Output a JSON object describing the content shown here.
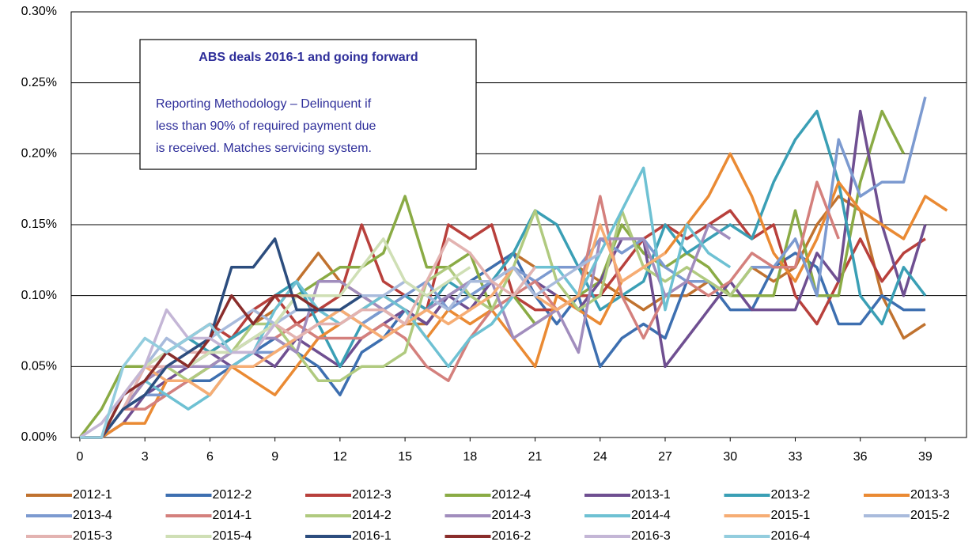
{
  "chart_data": {
    "type": "line",
    "annotation": {
      "title": "ABS deals 2016-1 and going forward",
      "lines": [
        "Reporting Methodology – Delinquent if",
        "less than 90% of required payment due",
        "is received. Matches servicing system."
      ]
    },
    "x": [
      0,
      1,
      2,
      3,
      4,
      5,
      6,
      7,
      8,
      9,
      10,
      11,
      12,
      13,
      14,
      15,
      16,
      17,
      18,
      19,
      20,
      21,
      22,
      23,
      24,
      25,
      26,
      27,
      28,
      29,
      30,
      31,
      32,
      33,
      34,
      35,
      36,
      37,
      38,
      39,
      40
    ],
    "xlim": [
      -0.4,
      40.9
    ],
    "xticks": [
      0,
      3,
      6,
      9,
      12,
      15,
      18,
      21,
      24,
      27,
      30,
      33,
      36,
      39
    ],
    "ylim": [
      0,
      0.3
    ],
    "yticks": [
      {
        "value": 0,
        "label": "0.00%"
      },
      {
        "value": 0.05,
        "label": "0.05%"
      },
      {
        "value": 0.1,
        "label": "0.10%"
      },
      {
        "value": 0.15,
        "label": "0.15%"
      },
      {
        "value": 0.2,
        "label": "0.20%"
      },
      {
        "value": 0.25,
        "label": "0.25%"
      },
      {
        "value": 0.3,
        "label": "0.30%"
      }
    ],
    "grid": true,
    "series": [
      {
        "name": "2012-1",
        "color": "#c0722f",
        "values": [
          0,
          0,
          0.02,
          0.04,
          0.05,
          0.05,
          0.06,
          0.07,
          0.08,
          0.09,
          0.11,
          0.13,
          0.11,
          0.1,
          0.09,
          0.08,
          0.08,
          0.1,
          0.11,
          0.12,
          0.13,
          0.12,
          0.12,
          0.12,
          0.11,
          0.1,
          0.09,
          0.1,
          0.1,
          0.11,
          0.1,
          0.12,
          0.11,
          0.12,
          0.15,
          0.17,
          0.16,
          0.1,
          0.07,
          0.08,
          null
        ]
      },
      {
        "name": "2012-2",
        "color": "#3d6fb0",
        "values": [
          0,
          0,
          0.02,
          0.03,
          0.04,
          0.04,
          0.04,
          0.05,
          0.06,
          0.07,
          0.06,
          0.05,
          0.03,
          0.06,
          0.07,
          0.09,
          0.08,
          0.1,
          0.11,
          0.12,
          0.13,
          0.1,
          0.08,
          0.1,
          0.05,
          0.07,
          0.08,
          0.07,
          0.11,
          0.11,
          0.09,
          0.09,
          0.12,
          0.13,
          0.12,
          0.08,
          0.08,
          0.1,
          0.09,
          0.09,
          null
        ]
      },
      {
        "name": "2012-3",
        "color": "#b8403c",
        "values": [
          0,
          0,
          0.02,
          0.04,
          0.06,
          0.07,
          0.08,
          0.07,
          0.09,
          0.1,
          0.08,
          0.09,
          0.1,
          0.15,
          0.11,
          0.1,
          0.09,
          0.15,
          0.14,
          0.15,
          0.1,
          0.09,
          0.09,
          0.1,
          0.1,
          0.12,
          0.14,
          0.15,
          0.14,
          0.15,
          0.16,
          0.14,
          0.15,
          0.1,
          0.08,
          0.11,
          0.14,
          0.11,
          0.13,
          0.14,
          null
        ]
      },
      {
        "name": "2012-4",
        "color": "#8aab45",
        "values": [
          0,
          0.02,
          0.05,
          0.05,
          0.06,
          0.05,
          0.05,
          0.06,
          0.07,
          0.08,
          0.1,
          0.11,
          0.12,
          0.12,
          0.13,
          0.17,
          0.12,
          0.12,
          0.13,
          0.09,
          0.1,
          0.08,
          0.09,
          0.1,
          0.11,
          0.15,
          0.13,
          0.12,
          0.13,
          0.12,
          0.1,
          0.1,
          0.1,
          0.16,
          0.1,
          0.1,
          0.18,
          0.23,
          0.2,
          null,
          null
        ]
      },
      {
        "name": "2013-1",
        "color": "#6f4f91",
        "values": [
          0,
          0,
          0.01,
          0.03,
          0.04,
          0.05,
          0.06,
          0.05,
          0.06,
          0.05,
          0.07,
          0.06,
          0.05,
          0.07,
          0.08,
          0.09,
          0.08,
          0.1,
          0.09,
          0.11,
          0.12,
          0.11,
          0.1,
          0.09,
          0.11,
          0.14,
          0.14,
          0.05,
          0.07,
          0.09,
          0.11,
          0.09,
          0.09,
          0.09,
          0.13,
          0.11,
          0.23,
          0.15,
          0.1,
          0.15,
          null
        ]
      },
      {
        "name": "2013-2",
        "color": "#3a9fb5",
        "values": [
          0,
          0,
          0.02,
          0.04,
          0.06,
          0.07,
          0.06,
          0.07,
          0.08,
          0.1,
          0.11,
          0.08,
          0.05,
          0.08,
          0.09,
          0.1,
          0.09,
          0.11,
          0.1,
          0.11,
          0.13,
          0.16,
          0.15,
          0.12,
          0.09,
          0.1,
          0.11,
          0.15,
          0.13,
          0.14,
          0.15,
          0.14,
          0.18,
          0.21,
          0.23,
          0.18,
          0.1,
          0.08,
          0.12,
          0.1,
          null
        ]
      },
      {
        "name": "2013-3",
        "color": "#ea8a33",
        "values": [
          0,
          0,
          0.01,
          0.01,
          0.04,
          0.04,
          0.03,
          0.05,
          0.04,
          0.03,
          0.05,
          0.07,
          0.08,
          0.09,
          0.1,
          0.09,
          0.07,
          0.09,
          0.08,
          0.09,
          0.07,
          0.05,
          0.1,
          0.09,
          0.08,
          0.11,
          0.12,
          0.13,
          0.15,
          0.17,
          0.2,
          0.17,
          0.13,
          0.11,
          0.14,
          0.18,
          0.16,
          0.15,
          0.14,
          0.17,
          0.16
        ]
      },
      {
        "name": "2013-4",
        "color": "#7c9ad0",
        "values": [
          0,
          0,
          0.02,
          0.03,
          0.03,
          0.04,
          0.05,
          0.05,
          0.06,
          0.06,
          0.07,
          0.08,
          0.09,
          0.08,
          0.09,
          0.1,
          0.11,
          0.09,
          0.1,
          0.11,
          0.12,
          0.11,
          0.12,
          0.12,
          0.14,
          0.13,
          0.14,
          0.12,
          0.11,
          0.11,
          0.1,
          0.12,
          0.12,
          0.14,
          0.1,
          0.21,
          0.17,
          0.18,
          0.18,
          0.24,
          null
        ]
      },
      {
        "name": "2014-1",
        "color": "#d4807d",
        "values": [
          0,
          0,
          0.02,
          0.02,
          0.03,
          0.04,
          0.05,
          0.06,
          0.07,
          0.07,
          0.08,
          0.07,
          0.07,
          0.07,
          0.08,
          0.07,
          0.05,
          0.04,
          0.07,
          0.09,
          0.1,
          0.11,
          0.09,
          0.1,
          0.17,
          0.1,
          0.07,
          0.1,
          0.11,
          0.1,
          0.11,
          0.13,
          0.12,
          0.12,
          0.18,
          0.14,
          null,
          null,
          null,
          null,
          null
        ]
      },
      {
        "name": "2014-2",
        "color": "#b0ca7f",
        "values": [
          0,
          0,
          0.02,
          0.04,
          0.05,
          0.04,
          0.05,
          0.06,
          0.08,
          0.08,
          0.06,
          0.04,
          0.04,
          0.05,
          0.05,
          0.06,
          0.11,
          0.12,
          0.1,
          0.09,
          0.12,
          0.16,
          0.11,
          0.09,
          0.1,
          0.16,
          0.12,
          0.11,
          0.12,
          0.11,
          0.1,
          0.12,
          null,
          null,
          null,
          null,
          null,
          null,
          null,
          null,
          null
        ]
      },
      {
        "name": "2014-3",
        "color": "#a18dbd",
        "values": [
          0,
          0,
          0.02,
          0.04,
          0.05,
          0.05,
          0.05,
          0.06,
          0.07,
          0.07,
          0.06,
          0.11,
          0.11,
          0.1,
          0.09,
          0.08,
          0.09,
          0.1,
          0.11,
          0.11,
          0.07,
          0.08,
          0.09,
          0.06,
          0.14,
          0.14,
          0.14,
          0.1,
          0.11,
          0.15,
          0.14,
          null,
          null,
          null,
          null,
          null,
          null,
          null,
          null,
          null,
          null
        ]
      },
      {
        "name": "2014-4",
        "color": "#6ec1d3",
        "values": [
          0,
          0,
          0.03,
          0.04,
          0.03,
          0.02,
          0.03,
          0.05,
          0.06,
          0.09,
          0.11,
          0.09,
          0.08,
          0.09,
          0.1,
          0.09,
          0.07,
          0.05,
          0.07,
          0.08,
          0.1,
          0.12,
          0.12,
          0.1,
          0.13,
          0.16,
          0.19,
          0.09,
          0.15,
          0.13,
          0.12,
          null,
          null,
          null,
          null,
          null,
          null,
          null,
          null,
          null,
          null
        ]
      },
      {
        "name": "2015-1",
        "color": "#f6ad74",
        "values": [
          0,
          0,
          0.03,
          0.05,
          0.04,
          0.04,
          0.03,
          0.05,
          0.05,
          0.06,
          0.07,
          0.08,
          0.09,
          0.08,
          0.07,
          0.08,
          0.09,
          0.08,
          0.09,
          0.1,
          0.12,
          0.1,
          0.09,
          0.1,
          0.15,
          0.11,
          0.12,
          0.13,
          null,
          null,
          null,
          null,
          null,
          null,
          null,
          null,
          null,
          null,
          null,
          null,
          null
        ]
      },
      {
        "name": "2015-2",
        "color": "#a9bbdc",
        "values": [
          0,
          0,
          0.02,
          0.05,
          0.07,
          0.06,
          0.07,
          0.08,
          0.09,
          0.08,
          0.09,
          0.09,
          0.09,
          0.1,
          0.1,
          0.11,
          0.1,
          0.09,
          0.11,
          0.11,
          0.12,
          0.1,
          0.11,
          0.12,
          0.13,
          null,
          null,
          null,
          null,
          null,
          null,
          null,
          null,
          null,
          null,
          null,
          null,
          null,
          null,
          null,
          null
        ]
      },
      {
        "name": "2015-3",
        "color": "#e3b3b1",
        "values": [
          0,
          0,
          0.02,
          0.05,
          0.05,
          0.06,
          0.06,
          0.06,
          0.06,
          0.08,
          0.07,
          0.08,
          0.08,
          0.09,
          0.09,
          0.08,
          0.11,
          0.14,
          0.13,
          0.11,
          0.1,
          0.12,
          null,
          null,
          null,
          null,
          null,
          null,
          null,
          null,
          null,
          null,
          null,
          null,
          null,
          null,
          null,
          null,
          null,
          null,
          null
        ]
      },
      {
        "name": "2015-4",
        "color": "#cfdfb5",
        "values": [
          0,
          0,
          0.03,
          0.05,
          0.06,
          0.05,
          0.06,
          0.06,
          0.07,
          0.08,
          0.1,
          0.1,
          0.1,
          0.12,
          0.14,
          0.11,
          0.1,
          0.11,
          0.12,
          null,
          null,
          null,
          null,
          null,
          null,
          null,
          null,
          null,
          null,
          null,
          null,
          null,
          null,
          null,
          null,
          null,
          null,
          null,
          null,
          null,
          null
        ]
      },
      {
        "name": "2016-1",
        "color": "#2c4d7e",
        "values": [
          0,
          0,
          0.02,
          0.03,
          0.05,
          0.06,
          0.07,
          0.12,
          0.12,
          0.14,
          0.09,
          0.09,
          0.09,
          0.1,
          null,
          null,
          null,
          null,
          null,
          null,
          null,
          null,
          null,
          null,
          null,
          null,
          null,
          null,
          null,
          null,
          null,
          null,
          null,
          null,
          null,
          null,
          null,
          null,
          null,
          null,
          null
        ]
      },
      {
        "name": "2016-2",
        "color": "#8a2d2b",
        "values": [
          0,
          0,
          0.03,
          0.04,
          0.06,
          0.05,
          0.07,
          0.1,
          0.08,
          0.1,
          0.1,
          0.09,
          null,
          null,
          null,
          null,
          null,
          null,
          null,
          null,
          null,
          null,
          null,
          null,
          null,
          null,
          null,
          null,
          null,
          null,
          null,
          null,
          null,
          null,
          null,
          null,
          null,
          null,
          null,
          null,
          null
        ]
      },
      {
        "name": "2016-3",
        "color": "#c4b6d6",
        "values": [
          0,
          0.01,
          0.03,
          0.05,
          0.09,
          0.07,
          0.07,
          0.06,
          0.06,
          0.08,
          null,
          null,
          null,
          null,
          null,
          null,
          null,
          null,
          null,
          null,
          null,
          null,
          null,
          null,
          null,
          null,
          null,
          null,
          null,
          null,
          null,
          null,
          null,
          null,
          null,
          null,
          null,
          null,
          null,
          null,
          null
        ]
      },
      {
        "name": "2016-4",
        "color": "#93cdde",
        "values": [
          0,
          0,
          0.05,
          0.07,
          0.06,
          0.07,
          0.08,
          0.06,
          null,
          null,
          null,
          null,
          null,
          null,
          null,
          null,
          null,
          null,
          null,
          null,
          null,
          null,
          null,
          null,
          null,
          null,
          null,
          null,
          null,
          null,
          null,
          null,
          null,
          null,
          null,
          null,
          null,
          null,
          null,
          null,
          null
        ]
      }
    ]
  }
}
